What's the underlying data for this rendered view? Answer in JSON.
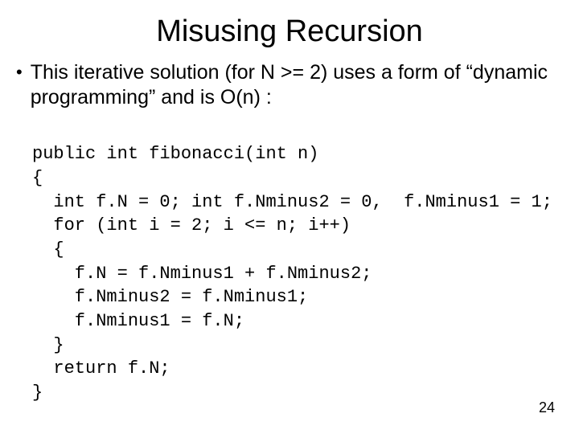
{
  "title": "Misusing Recursion",
  "bullet": {
    "marker": "•",
    "text": "This iterative solution (for N >= 2) uses a form of “dynamic programming” and is O(n) :"
  },
  "code": {
    "l1": "public int fibonacci(int n)",
    "l2": "{",
    "l3": "  int f.N = 0; int f.Nminus2 = 0,  f.Nminus1 = 1;",
    "l4": "  for (int i = 2; i <= n; i++)",
    "l5": "  {",
    "l6": "    f.N = f.Nminus1 + f.Nminus2;",
    "l7": "    f.Nminus2 = f.Nminus1;",
    "l8": "    f.Nminus1 = f.N;",
    "l9": "  }",
    "l10": "  return f.N;",
    "l11": "}"
  },
  "page_number": "24",
  "style": {
    "background": "#ffffff",
    "text_color": "#000000",
    "title_fontsize": 38,
    "body_fontsize": 25,
    "code_fontsize": 22,
    "code_font": "Courier New",
    "body_font": "Arial"
  }
}
